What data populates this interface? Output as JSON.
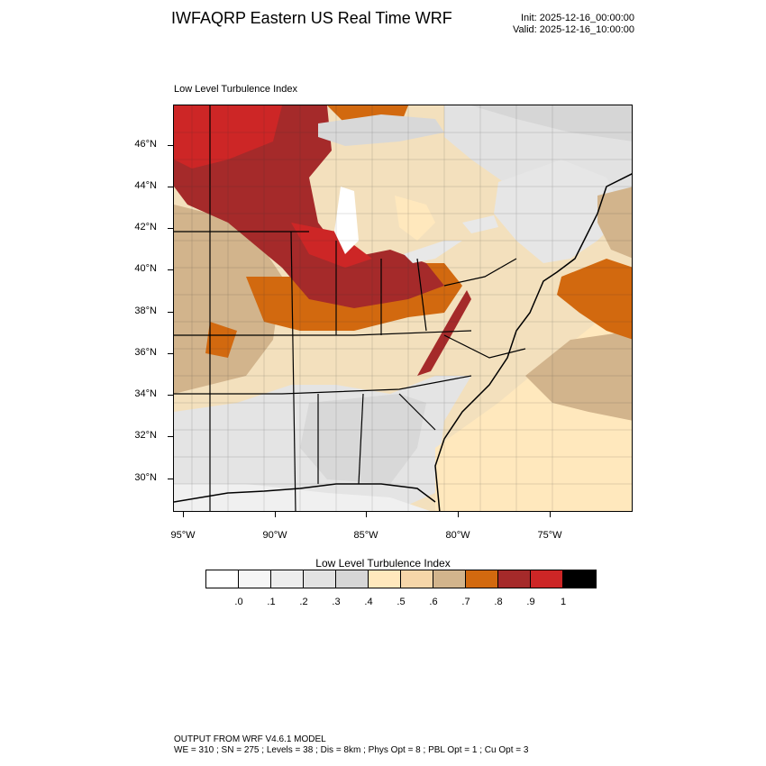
{
  "header": {
    "title": "IWFAQRP Eastern US Real Time WRF",
    "init": "Init: 2025-12-16_00:00:00",
    "valid": "Valid: 2025-12-16_10:00:00"
  },
  "panel": {
    "title": "Low Level Turbulence Index"
  },
  "map": {
    "lat_labels": [
      "46°N",
      "44°N",
      "42°N",
      "40°N",
      "38°N",
      "36°N",
      "34°N",
      "32°N",
      "30°N"
    ],
    "lon_labels": [
      "95°W",
      "90°W",
      "85°W",
      "80°W",
      "75°W"
    ]
  },
  "colorbar": {
    "title": "Low Level Turbulence Index",
    "colors": [
      "#ffffff",
      "#f6f6f6",
      "#ededed",
      "#e2e2e2",
      "#d6d6d6",
      "#ffe8bd",
      "#f6d6a9",
      "#d2b48c",
      "#d2690f",
      "#a52a2a",
      "#cd2626",
      "#000000"
    ],
    "labels": [
      ".0",
      ".1",
      ".2",
      ".3",
      ".4",
      ".5",
      ".6",
      ".7",
      ".8",
      ".9",
      "1"
    ]
  },
  "footer": {
    "line1": "OUTPUT FROM WRF V4.6.1 MODEL",
    "line2": "WE = 310 ; SN = 275 ; Levels = 38 ; Dis = 8km ; Phys Opt = 8 ; PBL Opt = 1 ; Cu Opt = 3"
  }
}
